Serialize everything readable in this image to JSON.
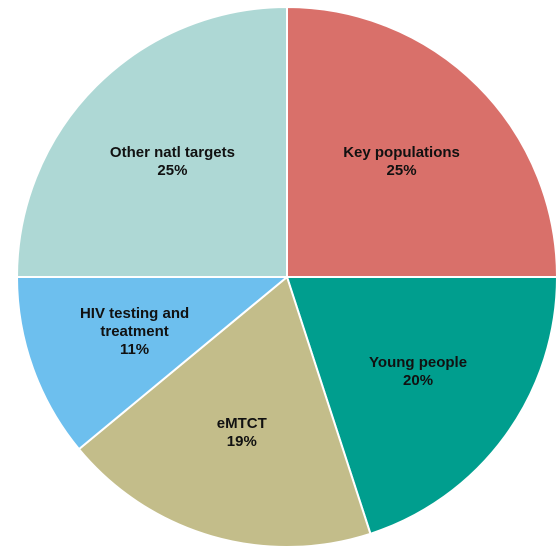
{
  "chart_data": {
    "type": "pie",
    "categories": [
      "Key populations",
      "Young people",
      "eMTCT",
      "HIV testing and treatment",
      "Other natl targets"
    ],
    "values": [
      25,
      20,
      19,
      11,
      25
    ],
    "value_labels": [
      "25%",
      "20%",
      "19%",
      "11%",
      "25%"
    ],
    "colors": [
      "#d9706a",
      "#009e8e",
      "#c3bd8a",
      "#6dbfee",
      "#aed8d5"
    ]
  }
}
